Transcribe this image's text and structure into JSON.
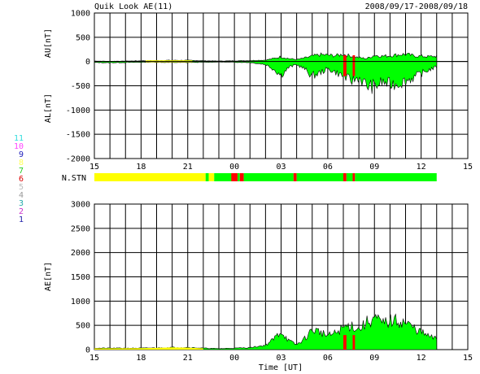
{
  "header": {
    "title": "Quik Look AE(11)",
    "date_range": "2008/09/17-2008/09/18"
  },
  "colors": {
    "fill": "#00ff00",
    "yellow": "#ffff00",
    "red": "#ff0000",
    "line": "#000000"
  },
  "station_legend": {
    "entries": [
      {
        "label": "11",
        "color": "#33dddd"
      },
      {
        "label": "10",
        "color": "#ff44ff"
      },
      {
        "label": "9",
        "color": "#2222bb"
      },
      {
        "label": "8",
        "color": "#ffff55"
      },
      {
        "label": "7",
        "color": "#22cc22"
      },
      {
        "label": "6",
        "color": "#dd0000"
      },
      {
        "label": "5",
        "color": "#bbbbbb"
      },
      {
        "label": "4",
        "color": "#999999"
      },
      {
        "label": "3",
        "color": "#22aaaa"
      },
      {
        "label": "2",
        "color": "#cc33cc"
      },
      {
        "label": "1",
        "color": "#2222aa"
      }
    ]
  },
  "chart_data": [
    {
      "type": "area",
      "name": "AU/AL",
      "ylabel_upper": "AU[nT]",
      "ylabel_lower": "AL[nT]",
      "ylim": [
        -2000,
        1000
      ],
      "yticks": [
        1000,
        500,
        0,
        -500,
        -1000,
        -1500,
        -2000
      ],
      "xlim": [
        15,
        39
      ],
      "xticks": [
        "15",
        "18",
        "21",
        "00",
        "03",
        "06",
        "09",
        "12",
        "15"
      ],
      "grid": true,
      "au_x": [
        15,
        16,
        17,
        18,
        19,
        20,
        21,
        22,
        23,
        24,
        25,
        26,
        26.5,
        27,
        27.5,
        28,
        28.5,
        29,
        29.5,
        30,
        30.5,
        31,
        31.5,
        32,
        32.5,
        33,
        33.5,
        34,
        34.5,
        35,
        35.5,
        36,
        36.5,
        37
      ],
      "au_y": [
        10,
        5,
        10,
        15,
        20,
        25,
        25,
        15,
        10,
        15,
        20,
        30,
        60,
        100,
        60,
        40,
        70,
        110,
        140,
        130,
        120,
        150,
        110,
        80,
        60,
        130,
        110,
        120,
        140,
        150,
        120,
        110,
        100,
        110
      ],
      "al_x": [
        15,
        16,
        17,
        18,
        19,
        20,
        21,
        22,
        23,
        24,
        25,
        26,
        26.5,
        27,
        27.5,
        28,
        28.5,
        29,
        29.5,
        30,
        30.5,
        31,
        31.5,
        32,
        32.5,
        33,
        33.5,
        34,
        34.5,
        35,
        35.5,
        36,
        36.5,
        37
      ],
      "al_y": [
        -20,
        -25,
        -20,
        -15,
        -15,
        -20,
        -20,
        -15,
        -10,
        -15,
        -20,
        -60,
        -150,
        -280,
        -120,
        -60,
        -150,
        -300,
        -230,
        -150,
        -220,
        -300,
        -400,
        -330,
        -500,
        -520,
        -420,
        -470,
        -450,
        -400,
        -330,
        -250,
        -170,
        -110
      ]
    },
    {
      "type": "bar",
      "name": "N.STN",
      "label": "N.STN",
      "xlim": [
        15,
        39
      ],
      "segments": [
        {
          "start": 15,
          "end": 22.15,
          "color": "yellow"
        },
        {
          "start": 22.15,
          "end": 22.35,
          "color": "green"
        },
        {
          "start": 22.35,
          "end": 22.7,
          "color": "yellow"
        },
        {
          "start": 22.7,
          "end": 24.0,
          "color": "green"
        },
        {
          "start": 23.8,
          "end": 24.2,
          "color": "red"
        },
        {
          "start": 24.2,
          "end": 24.35,
          "color": "green"
        },
        {
          "start": 24.35,
          "end": 24.6,
          "color": "red"
        },
        {
          "start": 24.6,
          "end": 27.8,
          "color": "green"
        },
        {
          "start": 27.8,
          "end": 28.0,
          "color": "red"
        },
        {
          "start": 28.0,
          "end": 31.0,
          "color": "green"
        },
        {
          "start": 31.0,
          "end": 31.2,
          "color": "red"
        },
        {
          "start": 31.2,
          "end": 31.6,
          "color": "green"
        },
        {
          "start": 31.6,
          "end": 31.75,
          "color": "red"
        },
        {
          "start": 31.75,
          "end": 37,
          "color": "green"
        }
      ]
    },
    {
      "type": "area",
      "name": "AE",
      "ylabel": "AE[nT]",
      "xlabel": "Time [UT]",
      "ylim": [
        0,
        3000
      ],
      "yticks": [
        3000,
        2500,
        2000,
        1500,
        1000,
        500,
        0
      ],
      "xlim": [
        15,
        39
      ],
      "xticks": [
        "15",
        "18",
        "21",
        "00",
        "03",
        "06",
        "09",
        "12",
        "15"
      ],
      "grid": true,
      "x": [
        15,
        16,
        17,
        18,
        19,
        20,
        21,
        22,
        23,
        24,
        25,
        26,
        26.5,
        27,
        27.5,
        28,
        28.5,
        29,
        29.5,
        30,
        30.5,
        31,
        31.5,
        32,
        32.5,
        33,
        33.5,
        34,
        34.5,
        35,
        35.5,
        36,
        36.5,
        37
      ],
      "y": [
        30,
        30,
        30,
        30,
        35,
        45,
        45,
        30,
        20,
        30,
        40,
        90,
        210,
        380,
        180,
        100,
        220,
        410,
        370,
        280,
        340,
        450,
        510,
        410,
        560,
        650,
        530,
        590,
        590,
        550,
        450,
        360,
        270,
        220
      ],
      "yellow_x": [
        15,
        18,
        19,
        20,
        21,
        22
      ],
      "yellow_y": [
        25,
        28,
        35,
        45,
        40,
        25
      ]
    }
  ]
}
